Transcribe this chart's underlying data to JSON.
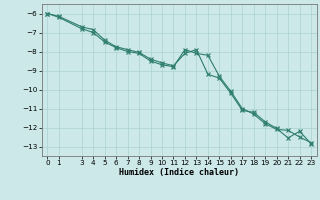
{
  "xlabel": "Humidex (Indice chaleur)",
  "x_values": [
    0,
    1,
    3,
    4,
    5,
    6,
    7,
    8,
    9,
    10,
    11,
    12,
    13,
    14,
    15,
    16,
    17,
    18,
    19,
    20,
    21,
    22,
    23
  ],
  "y_values": [
    -6.0,
    -6.2,
    -6.8,
    -7.0,
    -7.5,
    -7.8,
    -8.0,
    -8.1,
    -8.5,
    -8.7,
    -8.8,
    -7.9,
    -8.1,
    -8.2,
    -9.3,
    -10.1,
    -11.0,
    -11.3,
    -11.8,
    -12.1,
    -12.15,
    -12.5,
    -12.8
  ],
  "y2_values": [
    -6.0,
    -6.15,
    -6.7,
    -6.85,
    -7.4,
    -7.75,
    -7.9,
    -8.05,
    -8.4,
    -8.6,
    -8.75,
    -8.1,
    -7.9,
    -9.2,
    -9.4,
    -10.2,
    -11.1,
    -11.2,
    -11.7,
    -12.05,
    -12.55,
    -12.2,
    -12.85
  ],
  "line_color": "#2e7d6e",
  "background_color": "#cce8e8",
  "grid_color": "#aad0d0",
  "xlim": [
    -0.5,
    23.5
  ],
  "ylim": [
    -13.5,
    -5.5
  ],
  "yticks": [
    -6,
    -7,
    -8,
    -9,
    -10,
    -11,
    -12,
    -13
  ],
  "xticks": [
    0,
    1,
    3,
    4,
    5,
    6,
    7,
    8,
    9,
    10,
    11,
    12,
    13,
    14,
    15,
    16,
    17,
    18,
    19,
    20,
    21,
    22,
    23
  ],
  "tick_fontsize": 5.2,
  "xlabel_fontsize": 6.0
}
